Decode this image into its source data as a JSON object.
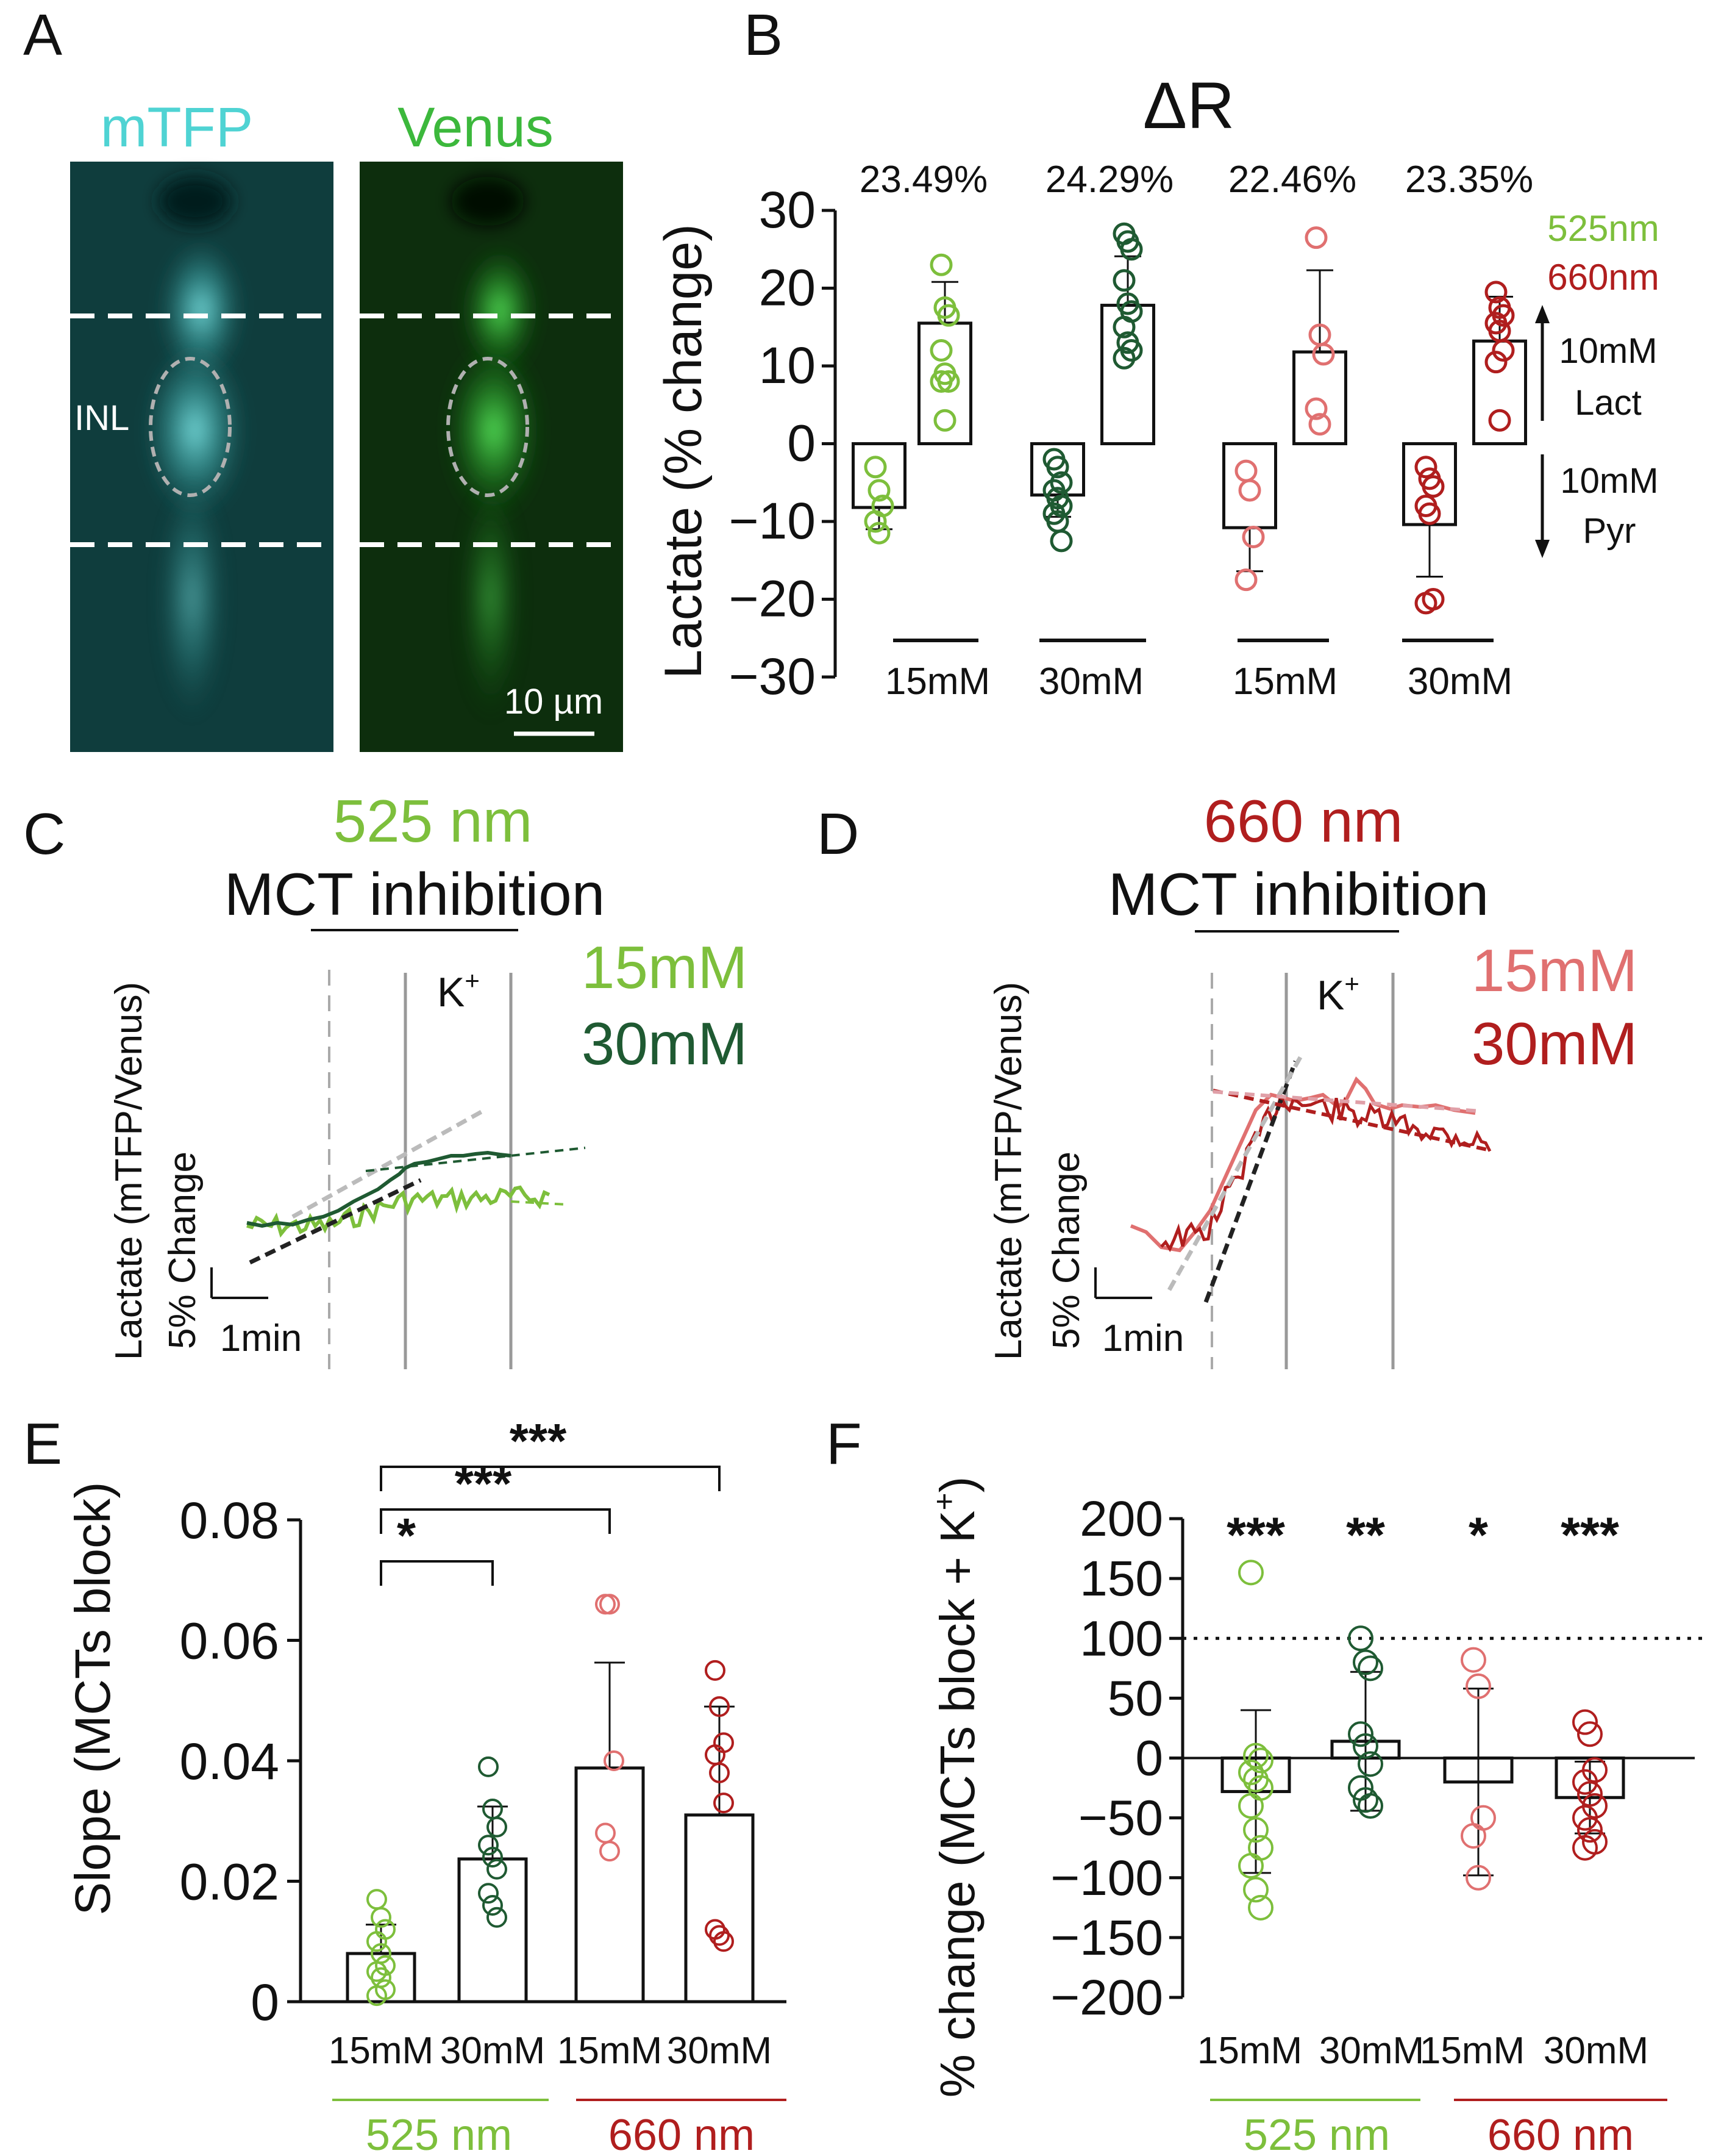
{
  "colors": {
    "green_light": "#7dbf3c",
    "green_dark": "#1f5a32",
    "red_light": "#e07070",
    "red_dark": "#b01e1e",
    "cyan": "#4fd3d3",
    "black": "#111111",
    "gray": "#9a9a9a"
  },
  "panels": {
    "A": {
      "letter": "A",
      "left_channel": "mTFP",
      "right_channel": "Venus",
      "inl_label": "INL",
      "scale_bar": "10 µm"
    },
    "B": {
      "letter": "B",
      "title": "ΔR",
      "ylabel": "Lactate (% change)",
      "ylim": [
        -30,
        30
      ],
      "yticks": [
        "30",
        "20",
        "10",
        "0",
        "−10",
        "−20",
        "−30"
      ],
      "percent_labels": [
        "23.49%",
        "24.29%",
        "22.46%",
        "23.35%"
      ],
      "legend": [
        "525nm",
        "660nm"
      ],
      "arrow_up_label": [
        "10mM",
        "Lact"
      ],
      "arrow_down_label": [
        "10mM",
        "Pyr"
      ],
      "group_labels": [
        "15mM",
        "30mM",
        "15mM",
        "30mM"
      ]
    },
    "C": {
      "letter": "C",
      "wavelength": "525 nm",
      "title": "MCT inhibition",
      "stim": "K",
      "stim_sup": "+",
      "legend": [
        "15mM",
        "30mM"
      ],
      "ylabel": "Lactate (mTFP/Venus)",
      "scale_y": "5% Change",
      "scale_x": "1min"
    },
    "D": {
      "letter": "D",
      "wavelength": "660 nm",
      "title": "MCT inhibition",
      "stim": "K",
      "stim_sup": "+",
      "legend": [
        "15mM",
        "30mM"
      ],
      "ylabel": "Lactate (mTFP/Venus)",
      "scale_y": "5% Change",
      "scale_x": "1min"
    },
    "E": {
      "letter": "E",
      "ylabel": "Slope (MCTs block)",
      "yticks": [
        "0.08",
        "0.06",
        "0.04",
        "0.02",
        "0"
      ],
      "group_labels": [
        "15mM",
        "30mM",
        "15mM",
        "30mM"
      ],
      "wavelength_labels": [
        "525 nm",
        "660 nm"
      ],
      "sig": [
        "*",
        "***",
        "***"
      ]
    },
    "F": {
      "letter": "F",
      "ylabel": "% change (MCTs block + K",
      "ylabel_sup": "+",
      "ylabel_end": ")",
      "yticks": [
        "200",
        "150",
        "100",
        "50",
        "0",
        "−50",
        "−100",
        "−150",
        "−200"
      ],
      "group_labels": [
        "15mM",
        "30mM",
        "15mM",
        "30mM"
      ],
      "wavelength_labels": [
        "525 nm",
        "660 nm"
      ],
      "sig": [
        "***",
        "**",
        "*",
        "***"
      ]
    }
  },
  "chart_data": [
    {
      "panel": "B",
      "type": "bar",
      "title": "ΔR",
      "ylabel": "Lactate (% change)",
      "ylim": [
        -30,
        30
      ],
      "categories": [
        "525nm 15mM",
        "525nm 30mM",
        "660nm 15mM",
        "660nm 30mM"
      ],
      "series": [
        {
          "name": "10mM Pyr",
          "values": [
            -8.2,
            -6.6,
            -10.8,
            -10.4
          ],
          "errors": [
            2.8,
            2.8,
            5.6,
            6.7
          ]
        },
        {
          "name": "10mM Lact",
          "values": [
            15.5,
            17.8,
            11.8,
            13.2
          ],
          "errors": [
            5.3,
            6.3,
            10.5,
            5.7
          ]
        }
      ],
      "points": {
        "pyr": [
          [
            -3,
            -6,
            -8,
            -10,
            -11.5
          ],
          [
            -2,
            -3,
            -5,
            -6,
            -7,
            -8,
            -9,
            -10,
            -12.5
          ],
          [
            -3.5,
            -6,
            -12,
            -17.5
          ],
          [
            -3,
            -4.5,
            -5.5,
            -8,
            -9,
            -20,
            -20.5
          ]
        ],
        "lact": [
          [
            23,
            17.5,
            16.5,
            12,
            9,
            8,
            8,
            3
          ],
          [
            27,
            26,
            25,
            21,
            18,
            17,
            15,
            13,
            12,
            11
          ],
          [
            26.5,
            14,
            11.5,
            4.5,
            2.5
          ],
          [
            19.5,
            17.5,
            16.5,
            15.5,
            14.5,
            12,
            10.5,
            3
          ]
        ]
      },
      "percent_labels": [
        "23.49%",
        "24.29%",
        "22.46%",
        "23.35%"
      ]
    },
    {
      "panel": "C",
      "type": "line",
      "title": "525 nm MCT inhibition",
      "series": [
        {
          "name": "15mM",
          "color": "light green"
        },
        {
          "name": "30mM",
          "color": "dark green"
        }
      ]
    },
    {
      "panel": "D",
      "type": "line",
      "title": "660 nm MCT inhibition",
      "series": [
        {
          "name": "15mM",
          "color": "light red"
        },
        {
          "name": "30mM",
          "color": "dark red"
        }
      ]
    },
    {
      "panel": "E",
      "type": "bar",
      "ylabel": "Slope (MCTs block)",
      "ylim": [
        0,
        0.08
      ],
      "categories": [
        "15mM (525 nm)",
        "30mM (525 nm)",
        "15mM (660 nm)",
        "30mM (660 nm)"
      ],
      "values": [
        0.008,
        0.0237,
        0.0388,
        0.031
      ],
      "errors": [
        0.0048,
        0.0087,
        0.0175,
        0.018
      ],
      "points": [
        [
          0.017,
          0.014,
          0.012,
          0.01,
          0.008,
          0.006,
          0.005,
          0.004,
          0.002,
          0.001
        ],
        [
          0.039,
          0.032,
          0.029,
          0.026,
          0.024,
          0.022,
          0.018,
          0.016,
          0.014
        ],
        [
          0.066,
          0.066,
          0.04,
          0.028,
          0.025
        ],
        [
          0.055,
          0.049,
          0.043,
          0.041,
          0.038,
          0.033,
          0.012,
          0.011,
          0.01
        ]
      ],
      "significance": [
        {
          "from": 0,
          "to": 1,
          "label": "*"
        },
        {
          "from": 0,
          "to": 2,
          "label": "***"
        },
        {
          "from": 0,
          "to": 3,
          "label": "***"
        }
      ]
    },
    {
      "panel": "F",
      "type": "bar",
      "ylabel": "% change (MCTs block + K+)",
      "ylim": [
        -200,
        200
      ],
      "reference_line": 100,
      "categories": [
        "15mM (525 nm)",
        "30mM (525 nm)",
        "15mM (660 nm)",
        "30mM (660 nm)"
      ],
      "values": [
        -28,
        14,
        -20,
        -33
      ],
      "errors": [
        68,
        58,
        78,
        30
      ],
      "points": [
        [
          155,
          2,
          -2,
          -12,
          -18,
          -25,
          -40,
          -60,
          -75,
          -90,
          -110,
          -125
        ],
        [
          100,
          80,
          75,
          20,
          10,
          -5,
          -25,
          -35,
          -40
        ],
        [
          82,
          60,
          -50,
          -65,
          -100
        ],
        [
          30,
          20,
          -10,
          -20,
          -30,
          -40,
          -50,
          -60,
          -70,
          -75
        ]
      ],
      "significance": [
        "***",
        "**",
        "*",
        "***"
      ]
    }
  ]
}
